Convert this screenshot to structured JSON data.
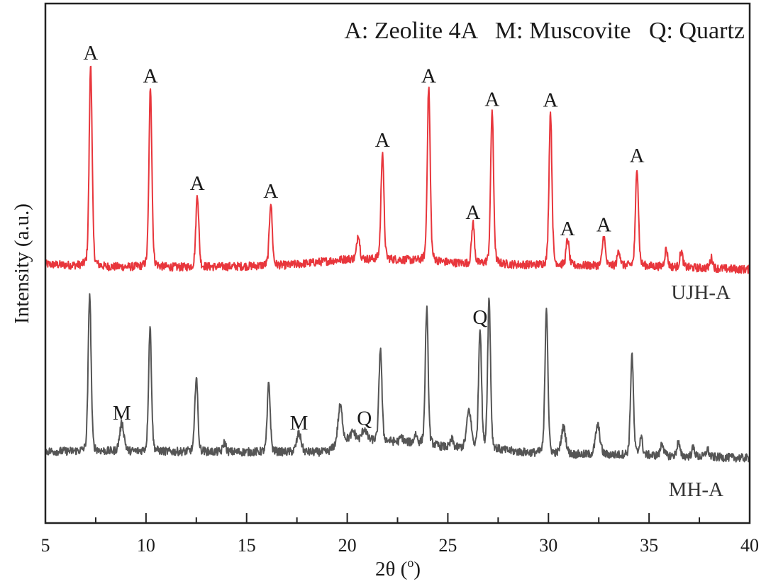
{
  "chart_data": {
    "type": "line",
    "title": "",
    "xlabel": "2θ (o)",
    "xlabel_main": "2θ (",
    "xlabel_sup": "o",
    "xlabel_close": ")",
    "ylabel": "Intensity (a.u.)",
    "xlim": [
      5,
      40
    ],
    "ylim": [
      0,
      100
    ],
    "xticks": [
      5,
      10,
      15,
      20,
      25,
      30,
      35,
      40
    ],
    "xtick_labels": [
      "5",
      "10",
      "15",
      "20",
      "25",
      "30",
      "35",
      "40"
    ],
    "minor_xticks": [
      7.5,
      12.5,
      17.5,
      22.5,
      27.5,
      32.5,
      37.5
    ],
    "yticks": [],
    "grid": false,
    "legend_text": "A: Zeolite 4A   M: Muscovite   Q: Quartz",
    "legend_placement": "top-right",
    "series": [
      {
        "name": "UJH-A",
        "color": "#e8363c",
        "baseline": [
          [
            5,
            49.8
          ],
          [
            8,
            49.3
          ],
          [
            12,
            49.2
          ],
          [
            17,
            49.6
          ],
          [
            20,
            50.8
          ],
          [
            23,
            50.6
          ],
          [
            26,
            49.9
          ],
          [
            30,
            49.6
          ],
          [
            35,
            49.4
          ],
          [
            40,
            48.8
          ]
        ],
        "peaks": [
          {
            "x": 7.25,
            "y": 88.4,
            "label": "A"
          },
          {
            "x": 10.22,
            "y": 84.0,
            "label": "A"
          },
          {
            "x": 12.55,
            "y": 63.3,
            "label": "A"
          },
          {
            "x": 16.2,
            "y": 61.8,
            "label": "A"
          },
          {
            "x": 20.55,
            "y": 55.7,
            "label": ""
          },
          {
            "x": 21.75,
            "y": 71.6,
            "label": "A"
          },
          {
            "x": 24.05,
            "y": 84.0,
            "label": "A"
          },
          {
            "x": 26.25,
            "y": 57.7,
            "label": "A"
          },
          {
            "x": 27.2,
            "y": 79.5,
            "label": "A"
          },
          {
            "x": 30.1,
            "y": 79.3,
            "label": "A"
          },
          {
            "x": 30.95,
            "y": 54.6,
            "label": "A"
          },
          {
            "x": 32.75,
            "y": 55.3,
            "label": "A"
          },
          {
            "x": 33.5,
            "y": 52.5,
            "label": ""
          },
          {
            "x": 34.4,
            "y": 68.6,
            "label": "A"
          },
          {
            "x": 35.85,
            "y": 52.7,
            "label": ""
          },
          {
            "x": 36.6,
            "y": 52.3,
            "label": ""
          },
          {
            "x": 38.1,
            "y": 51.0,
            "label": ""
          }
        ]
      },
      {
        "name": "MH-A",
        "color": "#555555",
        "baseline": [
          [
            5,
            13.8
          ],
          [
            19,
            13.6
          ],
          [
            20,
            16.0
          ],
          [
            23,
            15.5
          ],
          [
            25,
            14.5
          ],
          [
            27.5,
            14.0
          ],
          [
            30,
            13.2
          ],
          [
            35,
            13.0
          ],
          [
            40,
            12.5
          ]
        ],
        "peaks": [
          {
            "x": 7.2,
            "y": 44.1,
            "label": ""
          },
          {
            "x": 8.8,
            "y": 19.1,
            "label": "M"
          },
          {
            "x": 10.2,
            "y": 37.7,
            "label": ""
          },
          {
            "x": 12.5,
            "y": 28.4,
            "label": ""
          },
          {
            "x": 13.9,
            "y": 15.5,
            "label": ""
          },
          {
            "x": 16.1,
            "y": 27.0,
            "label": ""
          },
          {
            "x": 17.6,
            "y": 17.2,
            "label": "M"
          },
          {
            "x": 19.65,
            "y": 22.5,
            "label": ""
          },
          {
            "x": 20.3,
            "y": 17.5,
            "label": ""
          },
          {
            "x": 20.85,
            "y": 18.1,
            "label": "Q"
          },
          {
            "x": 21.65,
            "y": 33.8,
            "label": ""
          },
          {
            "x": 22.7,
            "y": 16.5,
            "label": ""
          },
          {
            "x": 23.4,
            "y": 17.0,
            "label": ""
          },
          {
            "x": 23.95,
            "y": 41.3,
            "label": ""
          },
          {
            "x": 25.2,
            "y": 16.0,
            "label": ""
          },
          {
            "x": 26.05,
            "y": 21.6,
            "label": ""
          },
          {
            "x": 26.6,
            "y": 37.5,
            "label": "Q"
          },
          {
            "x": 27.05,
            "y": 43.0,
            "label": ""
          },
          {
            "x": 29.9,
            "y": 41.6,
            "label": ""
          },
          {
            "x": 30.75,
            "y": 18.4,
            "label": ""
          },
          {
            "x": 32.45,
            "y": 18.8,
            "label": ""
          },
          {
            "x": 34.15,
            "y": 32.5,
            "label": ""
          },
          {
            "x": 34.6,
            "y": 16.5,
            "label": ""
          },
          {
            "x": 35.65,
            "y": 15.5,
            "label": ""
          },
          {
            "x": 36.45,
            "y": 15.5,
            "label": ""
          },
          {
            "x": 37.2,
            "y": 14.5,
            "label": ""
          },
          {
            "x": 37.9,
            "y": 14.2,
            "label": ""
          }
        ]
      }
    ]
  }
}
